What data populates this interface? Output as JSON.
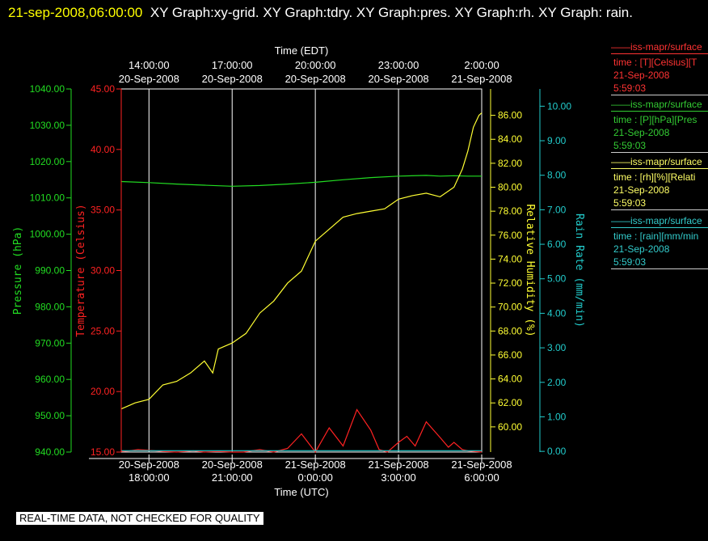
{
  "header": {
    "date": "21-sep-2008,06:00:00",
    "titles": "XY Graph:xy-grid.  XY Graph:tdry.  XY Graph:pres.  XY Graph:rh.  XY Graph: rain."
  },
  "disclaimer": "REAL-TIME DATA, NOT CHECKED FOR QUALITY",
  "colors": {
    "temperature": "#ff2222",
    "pressure": "#22dd22",
    "humidity": "#ffff33",
    "rain": "#22cccc",
    "grid": "#ffffff"
  },
  "legend": [
    {
      "id": "t",
      "line1": "iss-mapr/surface",
      "line2": "time : [T][Celsius][T",
      "line3": "21-Sep-2008",
      "line4": "5:59:03"
    },
    {
      "id": "p",
      "line1": "iss-mapr/surface",
      "line2": "time : [P][hPa][Pres",
      "line3": "21-Sep-2008",
      "line4": "5:59:03"
    },
    {
      "id": "rh",
      "line1": "iss-mapr/surface",
      "line2": "time : [rh][%][Relati",
      "line3": "21-Sep-2008",
      "line4": "5:59:03"
    },
    {
      "id": "rain",
      "line1": "iss-mapr/surface",
      "line2": "time : [rain][mm/min",
      "line3": "21-Sep-2008",
      "line4": "5:59:03"
    }
  ],
  "chart_data": {
    "type": "line",
    "x_range_utc_hours": [
      17.0,
      30.0
    ],
    "top_axis": {
      "label": "Time (EDT)",
      "ticks": [
        {
          "time": "14:00:00",
          "date": "20-Sep-2008"
        },
        {
          "time": "17:00:00",
          "date": "20-Sep-2008"
        },
        {
          "time": "20:00:00",
          "date": "20-Sep-2008"
        },
        {
          "time": "23:00:00",
          "date": "20-Sep-2008"
        },
        {
          "time": "2:00:00",
          "date": "21-Sep-2008"
        }
      ]
    },
    "bottom_axis": {
      "label": "Time (UTC)",
      "ticks": [
        {
          "date": "20-Sep-2008",
          "time": "18:00:00"
        },
        {
          "date": "20-Sep-2008",
          "time": "21:00:00"
        },
        {
          "date": "21-Sep-2008",
          "time": "0:00:00"
        },
        {
          "date": "21-Sep-2008",
          "time": "3:00:00"
        },
        {
          "date": "21-Sep-2008",
          "time": "6:00:00"
        }
      ]
    },
    "tick_hours": [
      18,
      21,
      24,
      27,
      30
    ],
    "axes": {
      "pressure": {
        "label": "Pressure (hPa)",
        "range": [
          940,
          1040
        ],
        "ticks": [
          "940.00",
          "950.00",
          "960.00",
          "970.00",
          "980.00",
          "990.00",
          "1000.00",
          "1010.00",
          "1020.00",
          "1030.00",
          "1040.00"
        ]
      },
      "temperature": {
        "label": "Temperature (Celsius)",
        "range": [
          15,
          45
        ],
        "ticks": [
          "15.00",
          "20.00",
          "25.00",
          "30.00",
          "35.00",
          "40.00",
          "45.00"
        ]
      },
      "humidity": {
        "label": "Relative Humidity (%)",
        "range": [
          57.9,
          88.2
        ],
        "ticks": [
          "60.00",
          "62.00",
          "64.00",
          "66.00",
          "68.00",
          "70.00",
          "72.00",
          "74.00",
          "76.00",
          "78.00",
          "80.00",
          "82.00",
          "84.00",
          "86.00"
        ]
      },
      "rain": {
        "label": "Rain Rate (mm/min)",
        "range": [
          -0.02,
          10.5
        ],
        "ticks": [
          "0.00",
          "1.00",
          "2.00",
          "3.00",
          "4.00",
          "5.00",
          "6.00",
          "7.00",
          "8.00",
          "9.00",
          "10.00"
        ]
      }
    },
    "series": [
      {
        "name": "Temperature",
        "axis": "temperature",
        "x": [
          17.0,
          17.3,
          17.6,
          18.0,
          18.5,
          19.0,
          19.3,
          19.6,
          20.0,
          20.5,
          21.0,
          21.4,
          21.7,
          22.0,
          22.5,
          23.0,
          23.5,
          24.0,
          24.5,
          25.0,
          25.5,
          26.0,
          26.3,
          26.6,
          27.0,
          27.3,
          27.6,
          28.0,
          28.5,
          28.8,
          29.0,
          29.3,
          29.5,
          30.0
        ],
        "values": [
          15.05,
          15.1,
          15.2,
          15.15,
          15.05,
          15.0,
          15.05,
          15.1,
          15.0,
          15.05,
          15.0,
          15.0,
          15.1,
          15.2,
          15.0,
          15.3,
          16.5,
          15.0,
          17.0,
          15.5,
          18.5,
          16.8,
          15.2,
          15.0,
          15.8,
          16.3,
          15.5,
          17.5,
          16.2,
          15.4,
          15.8,
          15.2,
          15.1,
          15.0
        ]
      },
      {
        "name": "Pressure",
        "axis": "pressure",
        "x": [
          17.0,
          18.0,
          19.0,
          20.0,
          21.0,
          22.0,
          23.0,
          24.0,
          25.0,
          26.0,
          27.0,
          28.0,
          28.5,
          29.0,
          29.5,
          30.0
        ],
        "values": [
          1014.5,
          1014.2,
          1013.8,
          1013.5,
          1013.2,
          1013.4,
          1013.8,
          1014.3,
          1015.0,
          1015.6,
          1016.0,
          1016.2,
          1016.0,
          1016.1,
          1016.0,
          1016.0
        ]
      },
      {
        "name": "Relative Humidity",
        "axis": "humidity",
        "x": [
          17.0,
          17.5,
          18.0,
          18.5,
          19.0,
          19.5,
          20.0,
          20.3,
          20.5,
          21.0,
          21.5,
          22.0,
          22.5,
          23.0,
          23.5,
          24.0,
          24.5,
          25.0,
          25.5,
          26.0,
          26.5,
          27.0,
          27.5,
          28.0,
          28.5,
          29.0,
          29.3,
          29.5,
          29.7,
          29.9,
          30.0
        ],
        "values": [
          61.5,
          62.0,
          62.3,
          63.5,
          63.8,
          64.5,
          65.5,
          64.5,
          66.5,
          67.0,
          67.8,
          69.5,
          70.5,
          72.0,
          73.0,
          75.5,
          76.5,
          77.5,
          77.8,
          78.0,
          78.2,
          79.0,
          79.3,
          79.5,
          79.2,
          80.0,
          81.5,
          83.0,
          85.0,
          86.0,
          86.2
        ]
      },
      {
        "name": "Rain Rate",
        "axis": "rain",
        "x": [
          17.0,
          30.0
        ],
        "values": [
          0.02,
          0.02
        ]
      }
    ]
  }
}
